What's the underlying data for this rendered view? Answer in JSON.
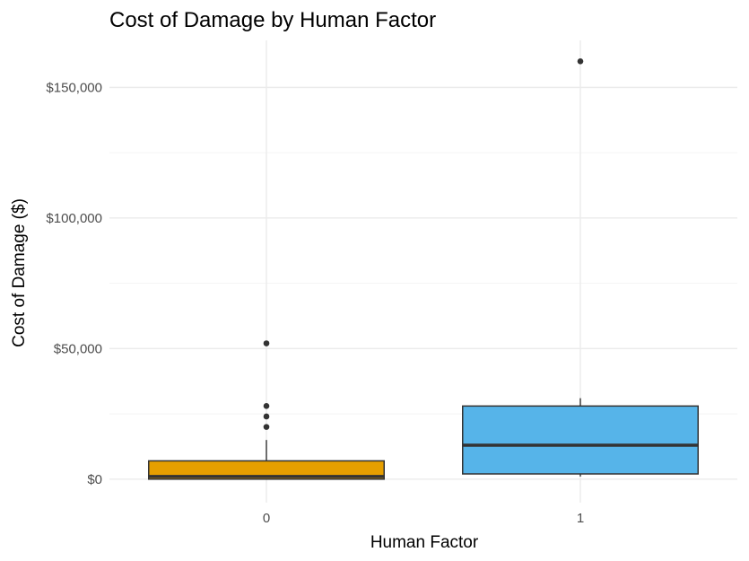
{
  "chart_data": {
    "type": "box",
    "title": "Cost of Damage by Human Factor",
    "xlabel": "Human Factor",
    "ylabel": "Cost of Damage ($)",
    "categories": [
      "0",
      "1"
    ],
    "y_ticks": [
      0,
      50000,
      100000,
      150000
    ],
    "y_tick_labels": [
      "$0",
      "$50,000",
      "$100,000",
      "$150,000"
    ],
    "ylim": [
      -9000,
      168000
    ],
    "grid": true,
    "legend": "none",
    "boxes": [
      {
        "category": "0",
        "color": "#E69F00",
        "min": 0,
        "q1": 0,
        "median": 1000,
        "q3": 7000,
        "max": 15000,
        "outliers": [
          20000,
          24000,
          28000,
          52000
        ]
      },
      {
        "category": "1",
        "color": "#56B4E9",
        "min": 1000,
        "q1": 2000,
        "median": 13000,
        "q3": 28000,
        "max": 31000,
        "outliers": [
          160000
        ]
      }
    ]
  }
}
